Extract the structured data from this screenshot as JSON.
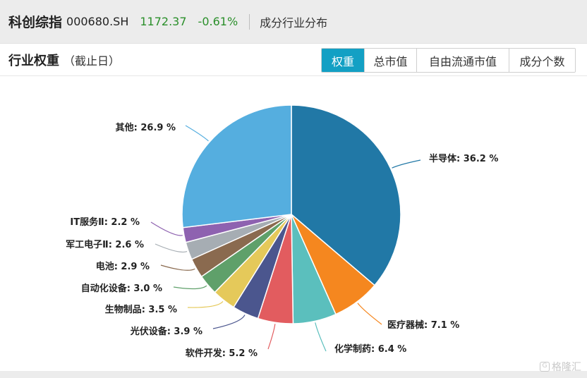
{
  "header": {
    "index_name": "科创综指",
    "index_code": "000680.SH",
    "price": "1172.37",
    "change": "-0.61%",
    "section": "成分行业分布"
  },
  "subheader": {
    "title": "行业权重",
    "note": "（截止日）"
  },
  "tabs": [
    {
      "label": "权重",
      "active": true
    },
    {
      "label": "总市值",
      "active": false
    },
    {
      "label": "自由流通市值",
      "active": false
    },
    {
      "label": "成分个数",
      "active": false
    }
  ],
  "colors": {
    "accent": "#13a0c4",
    "positive_green": "#2a8f2a"
  },
  "chart_data": {
    "type": "pie",
    "unit": "%",
    "slices": [
      {
        "label": "半导体",
        "value": 36.2,
        "color": "#2178a6"
      },
      {
        "label": "医疗器械",
        "value": 7.1,
        "color": "#f5871f"
      },
      {
        "label": "化学制药",
        "value": 6.4,
        "color": "#5bbfbd"
      },
      {
        "label": "软件开发",
        "value": 5.2,
        "color": "#e25c5f"
      },
      {
        "label": "光伏设备",
        "value": 3.9,
        "color": "#4b568e"
      },
      {
        "label": "生物制品",
        "value": 3.5,
        "color": "#e5c95a"
      },
      {
        "label": "自动化设备",
        "value": 3.0,
        "color": "#5fa06a"
      },
      {
        "label": "电池",
        "value": 2.9,
        "color": "#8a6a4f"
      },
      {
        "label": "军工电子Ⅱ",
        "value": 2.6,
        "color": "#a6adb3"
      },
      {
        "label": "IT服务Ⅱ",
        "value": 2.2,
        "color": "#8e62b0"
      },
      {
        "label": "其他",
        "value": 26.9,
        "color": "#55aedf"
      }
    ]
  },
  "watermark": {
    "icon": "gelonghui-logo-icon",
    "text": "格隆汇"
  }
}
